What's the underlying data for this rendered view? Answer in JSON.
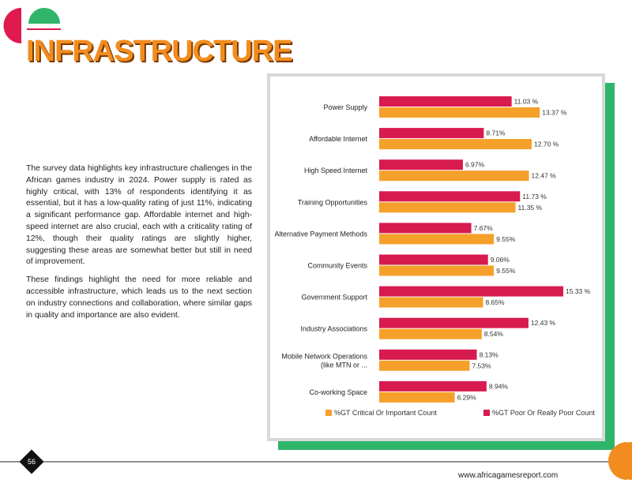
{
  "header": {
    "title": "INFRASTRUCTURE"
  },
  "body": {
    "paragraphs": [
      "The survey data highlights key infrastructure challenges in the African games industry in 2024. Power supply is rated as highly critical, with 13% of respondents identifying it as essential, but it has a low-quality rating of just 11%, indicating a significant performance gap. Affordable internet and high-speed internet are also crucial, each with a criticality rating of 12%, though their quality ratings are slightly higher, suggesting these areas are somewhat better but still in need of improvement.",
      "These findings highlight the need for more reliable and accessible infrastructure, which leads us to the next section on industry connections and collaboration, where similar gaps in quality and importance are also evident."
    ]
  },
  "chart_data": {
    "type": "bar",
    "orientation": "horizontal",
    "categories": [
      "Power Supply",
      "Affordable Internet",
      "High Speed Internet",
      "Training Opportunities",
      "Alternative Payment Methods",
      "Community Events",
      "Government Support",
      "Industry Associations",
      "Mobile Network Operations\n(like MTN or ...",
      "Co-working Space"
    ],
    "series": [
      {
        "name": "%GT Critical Or Important Count",
        "color": "#f5a02a",
        "values": [
          13.37,
          12.7,
          12.47,
          11.35,
          9.55,
          9.55,
          8.65,
          8.54,
          7.53,
          6.29
        ],
        "value_labels": [
          "13.37 %",
          "12.70 %",
          "12.47 %",
          "11.35 %",
          "9.55%",
          "9.55%",
          "8.65%",
          "8.54%",
          "7.53%",
          "6.29%"
        ]
      },
      {
        "name": "%GT Poor Or Really Poor Count",
        "color": "#d81b4f",
        "values": [
          11.03,
          8.71,
          6.97,
          11.73,
          7.67,
          9.06,
          15.33,
          12.43,
          8.13,
          8.94
        ],
        "value_labels": [
          "11.03 %",
          "8.71%",
          "6.97%",
          "11.73 %",
          "7.67%",
          "9.06%",
          "15.33 %",
          "12.43 %",
          "8.13%",
          "8.94%"
        ]
      }
    ],
    "legend": "bottom"
  },
  "footer": {
    "page": "56",
    "website": "www.africagamesreport.com"
  }
}
